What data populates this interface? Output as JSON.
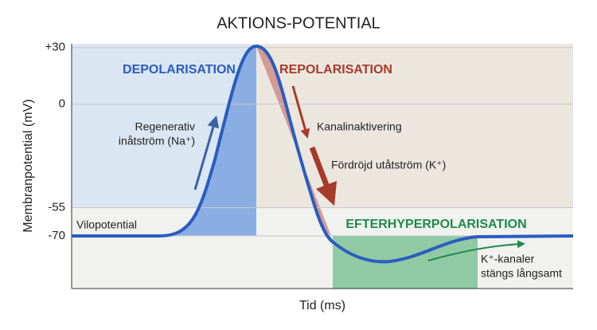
{
  "title": "AKTIONS-POTENTIAL",
  "y_label": "Membranpotential (mV)",
  "x_label": "Tid (ms)",
  "ylim": [
    -98,
    32
  ],
  "yticks": [
    {
      "value": 30,
      "label": "+30"
    },
    0,
    -55,
    -70
  ],
  "phases": [
    "DEPOLARISATION",
    "REPOLARISATION",
    "EFTERHYPERPOLARISATION"
  ],
  "annotations": {
    "resting": "Vilopotential",
    "influx": [
      "Regenerativ",
      "inåtström (Na⁺)"
    ],
    "inactivation": "Kanalinaktivering",
    "efflux": "Fördröjd utåtström (K⁺)",
    "closing": [
      "K⁺-kanaler",
      "stängs långsamt"
    ]
  }
}
